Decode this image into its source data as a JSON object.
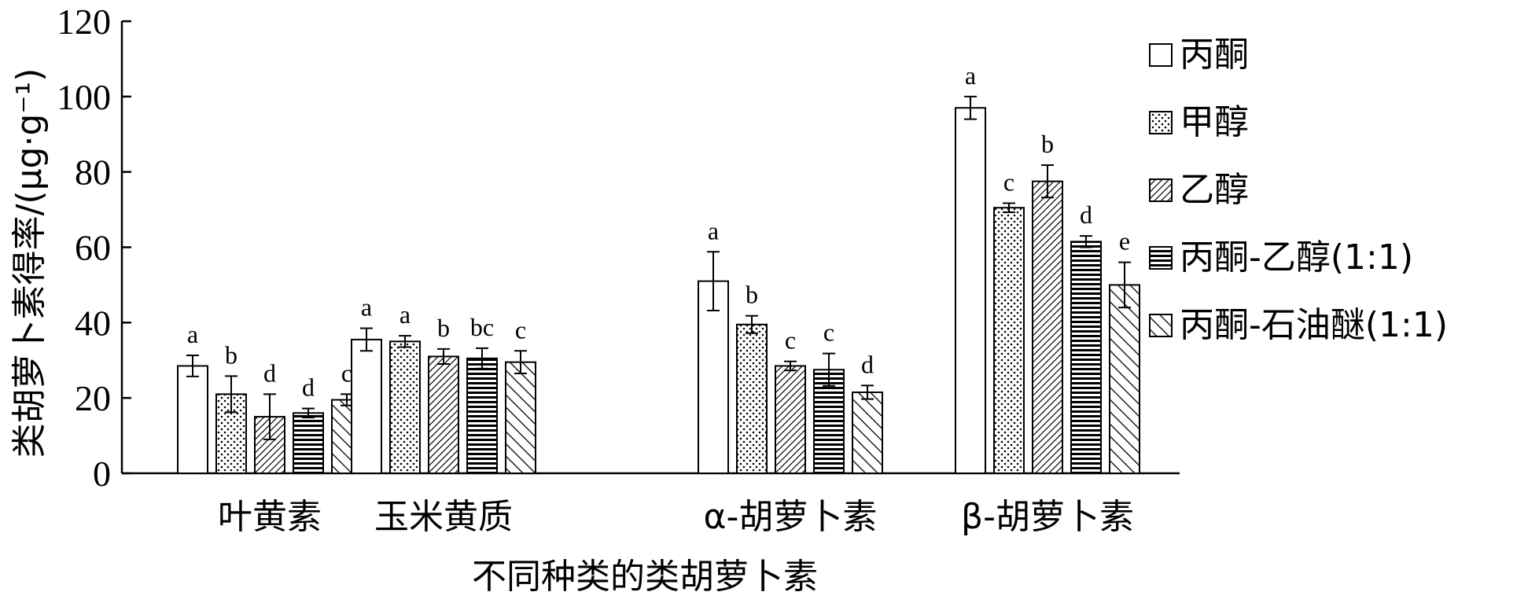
{
  "chart_data": {
    "type": "bar",
    "title": "",
    "xlabel": "不同种类的类胡萝卜素",
    "ylabel": "类胡萝卜素得率/(μg·g⁻¹)",
    "ylim": [
      0,
      120
    ],
    "yticks": [
      0,
      20,
      40,
      60,
      80,
      100,
      120
    ],
    "categories": [
      "叶黄素",
      "玉米黄质",
      "α-胡萝卜素",
      "β-胡萝卜素"
    ],
    "legend_position": "right",
    "series": [
      {
        "name": "丙酮",
        "pattern": "none",
        "values": [
          28.5,
          35.5,
          51,
          97
        ],
        "errors": [
          2.8,
          3.0,
          7.8,
          3.0
        ],
        "sig": [
          "a",
          "a",
          "a",
          "a"
        ]
      },
      {
        "name": "甲醇",
        "pattern": "dots",
        "values": [
          21,
          35,
          39.5,
          70.5
        ],
        "errors": [
          4.8,
          1.5,
          2.3,
          1.2
        ],
        "sig": [
          "b",
          "a",
          "b",
          "c"
        ]
      },
      {
        "name": "乙醇",
        "pattern": "diag-dense",
        "values": [
          15,
          31,
          28.5,
          77.5
        ],
        "errors": [
          6.0,
          2.0,
          1.2,
          4.3
        ],
        "sig": [
          "d",
          "b",
          "c",
          "b"
        ]
      },
      {
        "name": "丙酮-乙醇(1:1)",
        "pattern": "horizontal",
        "values": [
          16,
          30.5,
          27.5,
          61.5
        ],
        "errors": [
          1.2,
          2.7,
          4.3,
          1.5
        ],
        "sig": [
          "d",
          "bc",
          "c",
          "d"
        ]
      },
      {
        "name": "丙酮-石油醚(1:1)",
        "pattern": "diag-wide",
        "values": [
          19.5,
          29.5,
          21.5,
          50
        ],
        "errors": [
          1.5,
          3.0,
          1.8,
          6.0
        ],
        "sig": [
          "c",
          "c",
          "d",
          "e"
        ]
      }
    ]
  }
}
